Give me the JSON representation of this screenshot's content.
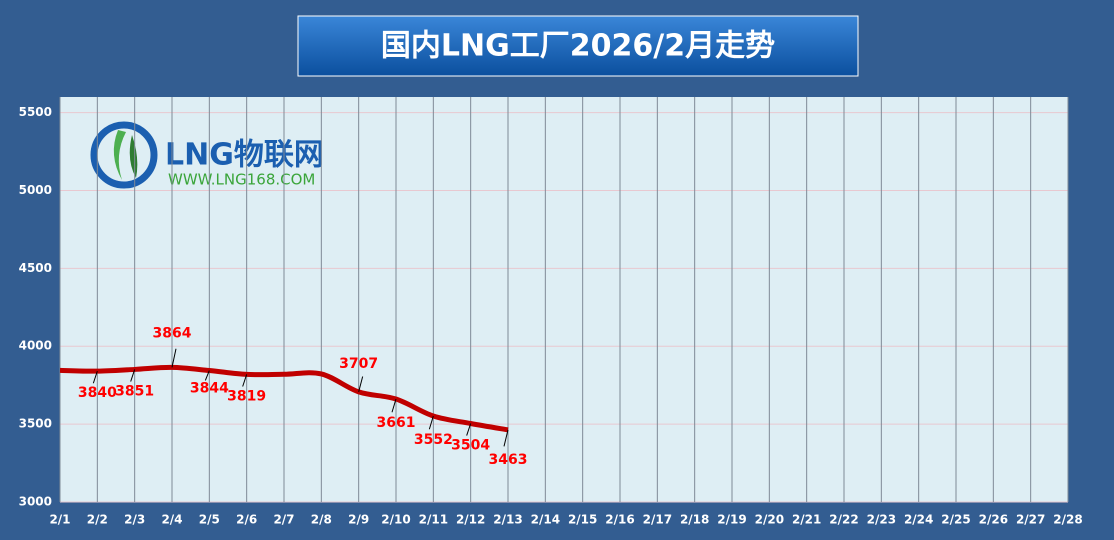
{
  "chart_data": {
    "type": "line",
    "title": "国内LNG工厂2026/2月走势",
    "logo": {
      "name": "LNG物联网",
      "url": "WWW.LNG168.COM"
    },
    "categories": [
      "2/1",
      "2/2",
      "2/3",
      "2/4",
      "2/5",
      "2/6",
      "2/7",
      "2/8",
      "2/9",
      "2/10",
      "2/11",
      "2/12",
      "2/13",
      "2/14",
      "2/15",
      "2/16",
      "2/17",
      "2/18",
      "2/19",
      "2/20",
      "2/21",
      "2/22",
      "2/23",
      "2/24",
      "2/25",
      "2/26",
      "2/27",
      "2/28"
    ],
    "series": [
      {
        "name": "LNG",
        "color": "#c00000",
        "values": [
          3845,
          3840,
          3851,
          3864,
          3844,
          3819,
          3820,
          3822,
          3707,
          3661,
          3552,
          3504,
          3463,
          null,
          null,
          null,
          null,
          null,
          null,
          null,
          null,
          null,
          null,
          null,
          null,
          null,
          null,
          null
        ],
        "value_labels": [
          null,
          "3840",
          "3851",
          "3864",
          "3844",
          "3819",
          null,
          null,
          "3707",
          "3661",
          "3552",
          "3504",
          "3463",
          null,
          null,
          null,
          null,
          null,
          null,
          null,
          null,
          null,
          null,
          null,
          null,
          null,
          null,
          null
        ]
      }
    ],
    "ylim": [
      3000,
      5600
    ],
    "yticks": [
      3000,
      3500,
      4000,
      4500,
      5000,
      5500
    ],
    "grid": true
  }
}
